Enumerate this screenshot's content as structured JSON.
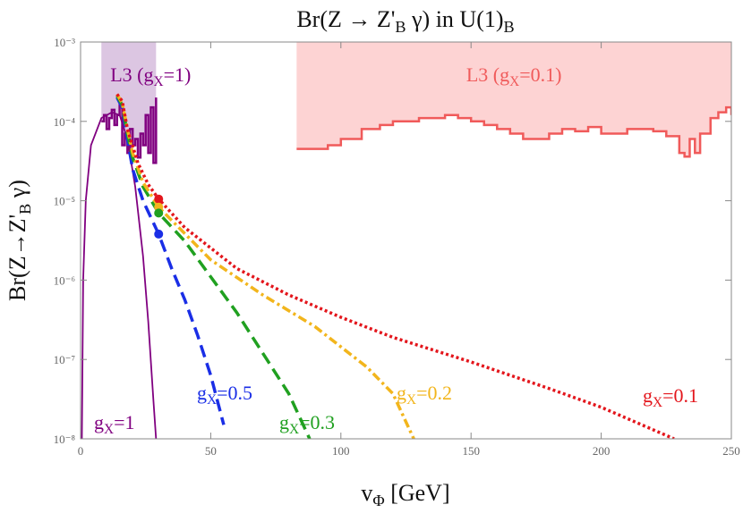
{
  "chart_data": {
    "type": "line",
    "title": [
      "Br(Z → Z'",
      "B",
      " γ) in U(1)",
      "B"
    ],
    "x_label": [
      "v",
      "Φ",
      " [GeV]"
    ],
    "y_label": [
      "Br(Z→Z'",
      "B",
      " γ)"
    ],
    "xlim": [
      0,
      250
    ],
    "ylim": [
      1e-08,
      0.001
    ],
    "log_y": true,
    "xticks": [
      0,
      50,
      100,
      150,
      200,
      250
    ],
    "yticks": [
      {
        "value": 1e-08,
        "label": "10⁻⁸"
      },
      {
        "value": 1e-07,
        "label": "10⁻⁷"
      },
      {
        "value": 1e-06,
        "label": "10⁻⁶"
      },
      {
        "value": 1e-05,
        "label": "10⁻⁵"
      },
      {
        "value": 0.0001,
        "label": "10⁻⁴"
      },
      {
        "value": 0.001,
        "label": "10⁻³"
      }
    ],
    "regions": [
      {
        "name": [
          "L3 (g",
          "X",
          "=1)"
        ],
        "color": "#dcc6e2",
        "line_color": "#800080",
        "x": [
          8,
          9,
          10,
          11,
          12,
          13,
          14,
          15,
          16,
          17,
          18,
          19,
          20,
          21,
          22,
          23,
          24,
          25,
          26,
          27,
          28,
          29
        ],
        "values": [
          0.0001,
          0.00012,
          8e-05,
          0.00011,
          0.00014,
          9e-05,
          0.00012,
          0.00016,
          5e-05,
          7e-05,
          4e-05,
          8e-05,
          5e-05,
          6e-05,
          3.5e-05,
          7e-05,
          5e-05,
          0.00012,
          4e-05,
          0.00015,
          3e-05,
          0.0002
        ]
      },
      {
        "name": [
          "L3 (g",
          "X",
          "=0.1)"
        ],
        "color": "#fdd3d3",
        "line_color": "#f05a5a",
        "x": [
          83,
          95,
          100,
          108,
          115,
          120,
          130,
          140,
          145,
          150,
          155,
          160,
          165,
          170,
          180,
          185,
          190,
          195,
          200,
          210,
          220,
          225,
          230,
          232,
          234,
          236,
          238,
          242,
          245,
          248,
          250
        ],
        "values": [
          4.5e-05,
          5e-05,
          6e-05,
          8e-05,
          9e-05,
          0.0001,
          0.00011,
          0.00012,
          0.00011,
          0.0001,
          9e-05,
          8e-05,
          7e-05,
          6e-05,
          7e-05,
          8e-05,
          7.5e-05,
          8.5e-05,
          7e-05,
          8e-05,
          7.5e-05,
          6.5e-05,
          4e-05,
          3.6e-05,
          6e-05,
          4e-05,
          7e-05,
          0.00011,
          0.00013,
          0.00015,
          0.00012
        ]
      }
    ],
    "series": [
      {
        "name": [
          "g",
          "X",
          "=1"
        ],
        "color": "#800080",
        "style": "solid",
        "x": [
          0.5,
          1,
          2,
          4,
          8,
          12,
          15,
          18,
          21,
          24,
          26,
          28,
          29
        ],
        "values": [
          1e-08,
          1e-06,
          1e-05,
          5e-05,
          0.00011,
          0.00013,
          0.00012,
          6e-05,
          1.5e-05,
          2e-06,
          3e-07,
          3e-08,
          1e-08
        ]
      },
      {
        "name": [
          "g",
          "X",
          "=0.5"
        ],
        "color": "#1a2ee6",
        "style": "dashed",
        "x": [
          14,
          16,
          18,
          20,
          24,
          30,
          35,
          40,
          45,
          50,
          55
        ],
        "values": [
          0.0002,
          0.00015,
          6e-05,
          2.5e-05,
          1e-05,
          3.8e-06,
          1.4e-06,
          5.7e-07,
          2e-07,
          6.3e-08,
          1.5e-08
        ]
      },
      {
        "name": [
          "g",
          "X",
          "=0.3"
        ],
        "color": "#20a020",
        "style": "dashed",
        "x": [
          14,
          16,
          18,
          20,
          24,
          30,
          40,
          50,
          60,
          70,
          80,
          88
        ],
        "values": [
          0.00021,
          0.00016,
          7e-05,
          3.5e-05,
          1.5e-05,
          7e-06,
          3.1e-06,
          1.1e-06,
          3.9e-07,
          1.2e-07,
          3.7e-08,
          1e-08
        ]
      },
      {
        "name": [
          "g",
          "X",
          "=0.2"
        ],
        "color": "#f2b51c",
        "style": "dashdot",
        "x": [
          14,
          16,
          18,
          20,
          24,
          30,
          50,
          70,
          90,
          110,
          120,
          128
        ],
        "values": [
          0.00022,
          0.00017,
          8e-05,
          4e-05,
          1.7e-05,
          8.3e-06,
          1.8e-06,
          6.5e-07,
          2.6e-07,
          8e-08,
          3.7e-08,
          1e-08
        ]
      },
      {
        "name": [
          "g",
          "X",
          "=0.1"
        ],
        "color": "#e3161c",
        "style": "dotted",
        "x": [
          14,
          16,
          18,
          22,
          26,
          30,
          40,
          60,
          80,
          100,
          120,
          150,
          180,
          200,
          228
        ],
        "values": [
          0.00022,
          0.00018,
          8e-05,
          3e-05,
          1.6e-05,
          1.05e-05,
          4.6e-06,
          1.4e-06,
          6.5e-07,
          3.4e-07,
          1.9e-07,
          9.3e-08,
          4.3e-08,
          2.5e-08,
          1e-08
        ]
      }
    ],
    "markers": [
      {
        "x": 30,
        "y": 1.05e-05,
        "color": "#e3161c"
      },
      {
        "x": 30,
        "y": 8.3e-06,
        "color": "#f2b51c"
      },
      {
        "x": 30,
        "y": 7e-06,
        "color": "#20a020"
      },
      {
        "x": 30,
        "y": 3.8e-06,
        "color": "#1a2ee6"
      }
    ]
  }
}
